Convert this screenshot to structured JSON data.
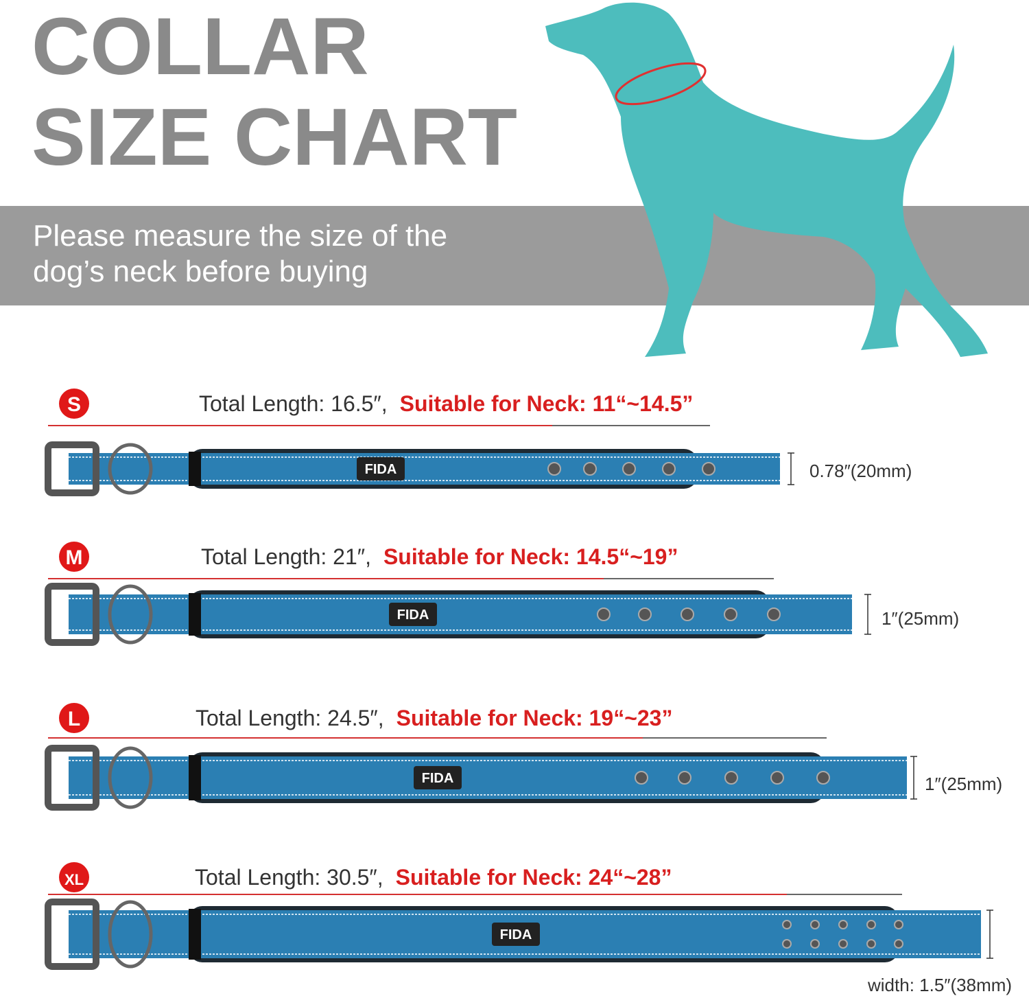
{
  "header": {
    "title": [
      "COLLAR",
      "SIZE CHART"
    ],
    "subtitle": [
      "Please measure the size of the",
      "dog’s neck before buying"
    ]
  },
  "sizes": [
    {
      "badge": "S",
      "total": "Total Length: 16.5″,",
      "neck": "Suitable for Neck: 11“~14.5”",
      "width": "0.78″(20mm)",
      "brand": "FIDA"
    },
    {
      "badge": "M",
      "total": "Total Length: 21″,",
      "neck": "Suitable for Neck: 14.5“~19”",
      "width": "1″(25mm)",
      "brand": "FIDA"
    },
    {
      "badge": "L",
      "total": "Total Length: 24.5″,",
      "neck": "Suitable for Neck: 19“~23”",
      "width": "1″(25mm)",
      "brand": "FIDA"
    },
    {
      "badge": "XL",
      "total": "Total Length: 30.5″,",
      "neck": "Suitable for Neck: 24“~28”",
      "width": "width: 1.5″(38mm)",
      "brand": "FIDA"
    }
  ]
}
